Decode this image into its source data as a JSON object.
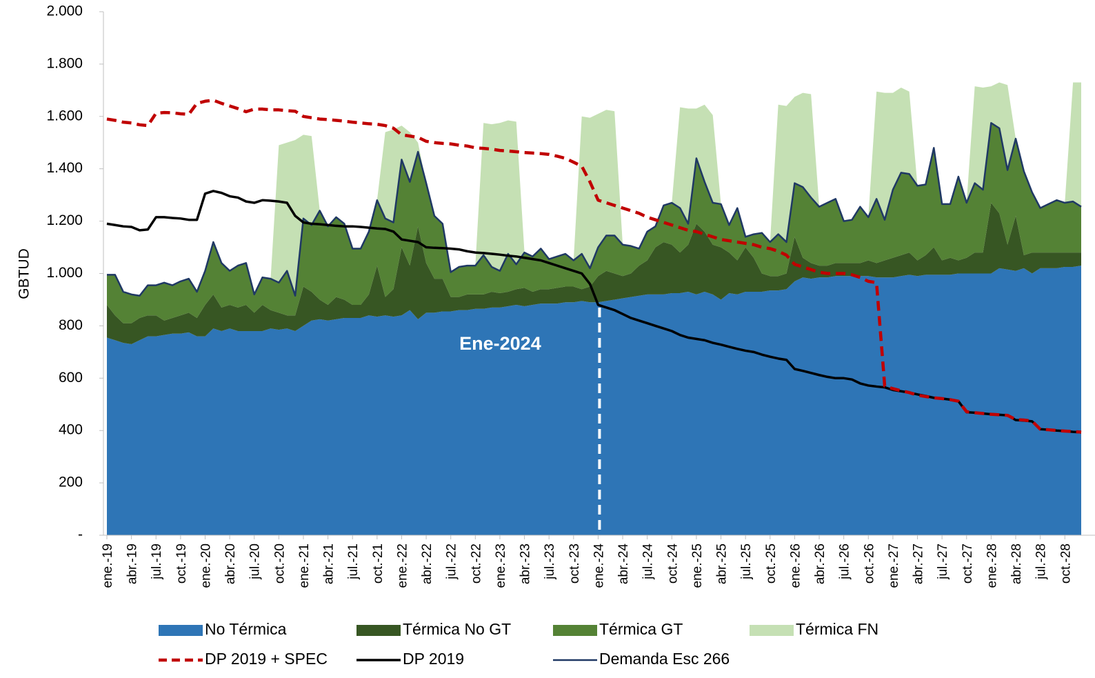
{
  "chart_data": {
    "type": "area",
    "y_label": "GBTUD",
    "legend": "bottom",
    "grid": false,
    "ylim": [
      0,
      2000
    ],
    "yticks": [
      {
        "value": 0,
        "label": "-"
      },
      200,
      400,
      600,
      800,
      {
        "value": 1000,
        "label": "1.000"
      },
      {
        "value": 1200,
        "label": "1.200"
      },
      {
        "value": 1400,
        "label": "1.400"
      },
      {
        "value": 1600,
        "label": "1.600"
      },
      {
        "value": 1800,
        "label": "1.800"
      },
      {
        "value": 2000,
        "label": "2.000"
      }
    ],
    "categories": [
      "ene.-19",
      null,
      null,
      "abr.-19",
      null,
      null,
      "jul.-19",
      null,
      null,
      "oct.-19",
      null,
      null,
      "ene.-20",
      null,
      null,
      "abr.-20",
      null,
      null,
      "jul.-20",
      null,
      null,
      "oct.-20",
      null,
      null,
      "ene.-21",
      null,
      null,
      "abr.-21",
      null,
      null,
      "jul.-21",
      null,
      null,
      "oct.-21",
      null,
      null,
      "ene.-22",
      null,
      null,
      "abr.-22",
      null,
      null,
      "jul.-22",
      null,
      null,
      "oct.-22",
      null,
      null,
      "ene.-23",
      null,
      null,
      "abr.-23",
      null,
      null,
      "jul.-23",
      null,
      null,
      "oct.-23",
      null,
      null,
      "ene.-24",
      null,
      null,
      "abr.-24",
      null,
      null,
      "jul.-24",
      null,
      null,
      "oct.-24",
      null,
      null,
      "ene.-25",
      null,
      null,
      "abr.-25",
      null,
      null,
      "jul.-25",
      null,
      null,
      "oct.-25",
      null,
      null,
      "ene.-26",
      null,
      null,
      "abr.-26",
      null,
      null,
      "jul.-26",
      null,
      null,
      "oct.-26",
      null,
      null,
      "ene.-27",
      null,
      null,
      "abr.-27",
      null,
      null,
      "jul.-27",
      null,
      null,
      "oct.-27",
      null,
      null,
      "ene.-28",
      null,
      null,
      "abr.-28",
      null,
      null,
      "jul.-28",
      null,
      null,
      "oct.-28",
      null,
      null
    ],
    "series": [
      {
        "name": "No Térmica",
        "type": "area",
        "color": "#2e75b6",
        "values": [
          755,
          745,
          735,
          730,
          745,
          760,
          760,
          765,
          770,
          770,
          775,
          760,
          760,
          790,
          780,
          790,
          780,
          780,
          780,
          780,
          790,
          785,
          790,
          780,
          800,
          820,
          825,
          820,
          825,
          830,
          830,
          830,
          840,
          835,
          840,
          835,
          840,
          860,
          825,
          850,
          850,
          855,
          855,
          860,
          860,
          865,
          865,
          870,
          870,
          875,
          880,
          875,
          880,
          885,
          885,
          885,
          890,
          890,
          895,
          890,
          890,
          895,
          900,
          905,
          910,
          915,
          920,
          920,
          920,
          925,
          925,
          930,
          920,
          930,
          920,
          900,
          925,
          920,
          930,
          930,
          930,
          935,
          935,
          940,
          970,
          985,
          980,
          985,
          985,
          990,
          990,
          990,
          990,
          990,
          985,
          985,
          985,
          990,
          995,
          990,
          995,
          995,
          995,
          995,
          1000,
          1000,
          1000,
          1000,
          1000,
          1020,
          1015,
          1010,
          1020,
          1000,
          1020,
          1020,
          1020,
          1025,
          1025,
          1030
        ]
      },
      {
        "name": "Térmica No GT",
        "type": "area",
        "color": "#375623",
        "values": [
          125,
          95,
          75,
          80,
          85,
          80,
          80,
          55,
          60,
          70,
          75,
          70,
          120,
          130,
          90,
          90,
          90,
          100,
          70,
          100,
          70,
          65,
          50,
          60,
          150,
          110,
          75,
          60,
          85,
          70,
          50,
          50,
          80,
          195,
          70,
          105,
          260,
          170,
          355,
          190,
          130,
          125,
          55,
          50,
          60,
          55,
          55,
          60,
          55,
          55,
          60,
          70,
          50,
          55,
          55,
          60,
          60,
          60,
          45,
          60,
          100,
          115,
          100,
          85,
          90,
          115,
          130,
          180,
          200,
          185,
          155,
          180,
          270,
          230,
          190,
          200,
          155,
          130,
          170,
          130,
          70,
          55,
          55,
          60,
          170,
          75,
          60,
          45,
          45,
          50,
          50,
          50,
          50,
          60,
          55,
          65,
          75,
          80,
          85,
          60,
          75,
          105,
          55,
          65,
          50,
          60,
          80,
          80,
          270,
          210,
          95,
          210,
          50,
          80,
          60,
          60,
          60,
          55,
          55,
          50
        ]
      },
      {
        "name": "Térmica GT",
        "type": "area",
        "color": "#548235",
        "values": [
          115,
          155,
          120,
          110,
          85,
          115,
          115,
          145,
          125,
          130,
          130,
          100,
          130,
          200,
          170,
          130,
          160,
          160,
          70,
          105,
          120,
          115,
          170,
          75,
          260,
          255,
          340,
          300,
          305,
          290,
          215,
          215,
          240,
          250,
          300,
          255,
          335,
          320,
          285,
          305,
          240,
          210,
          95,
          115,
          110,
          110,
          150,
          95,
          85,
          145,
          95,
          135,
          135,
          155,
          115,
          120,
          125,
          100,
          135,
          70,
          110,
          135,
          145,
          120,
          105,
          65,
          110,
          80,
          140,
          160,
          170,
          80,
          250,
          190,
          160,
          165,
          105,
          200,
          40,
          90,
          155,
          130,
          160,
          120,
          205,
          270,
          250,
          225,
          240,
          245,
          160,
          165,
          215,
          165,
          245,
          155,
          260,
          315,
          300,
          285,
          270,
          380,
          215,
          205,
          320,
          210,
          265,
          240,
          305,
          325,
          285,
          295,
          320,
          230,
          170,
          185,
          200,
          190,
          195,
          175
        ]
      },
      {
        "name": "Térmica FN",
        "type": "area",
        "color": "#c5e0b4",
        "values": [
          0,
          0,
          0,
          0,
          0,
          0,
          0,
          0,
          0,
          0,
          0,
          0,
          0,
          0,
          0,
          0,
          0,
          0,
          0,
          0,
          0,
          525,
          490,
          595,
          320,
          340,
          0,
          0,
          0,
          0,
          0,
          0,
          0,
          0,
          330,
          355,
          130,
          190,
          35,
          0,
          0,
          0,
          0,
          0,
          0,
          0,
          505,
          545,
          565,
          510,
          545,
          0,
          0,
          0,
          0,
          0,
          0,
          0,
          525,
          575,
          510,
          480,
          475,
          0,
          0,
          0,
          0,
          0,
          0,
          0,
          385,
          440,
          190,
          295,
          335,
          0,
          0,
          0,
          0,
          0,
          0,
          0,
          495,
          520,
          330,
          360,
          395,
          0,
          0,
          0,
          0,
          0,
          0,
          0,
          410,
          485,
          370,
          325,
          315,
          0,
          0,
          0,
          0,
          0,
          0,
          0,
          370,
          390,
          140,
          175,
          325,
          0,
          0,
          0,
          0,
          0,
          0,
          0,
          455,
          475
        ]
      },
      {
        "name": "DP 2019 + SPEC",
        "type": "line",
        "line_style": "dashed",
        "color": "#c00000",
        "values": [
          1590,
          1585,
          1578,
          1575,
          1568,
          1565,
          1612,
          1615,
          1614,
          1610,
          1608,
          1650,
          1658,
          1662,
          1650,
          1640,
          1630,
          1618,
          1628,
          1628,
          1625,
          1625,
          1622,
          1620,
          1600,
          1595,
          1590,
          1588,
          1585,
          1582,
          1578,
          1575,
          1572,
          1570,
          1565,
          1555,
          1530,
          1525,
          1520,
          1505,
          1500,
          1497,
          1495,
          1490,
          1487,
          1480,
          1478,
          1475,
          1470,
          1468,
          1465,
          1462,
          1460,
          1458,
          1455,
          1448,
          1440,
          1425,
          1410,
          1350,
          1280,
          1270,
          1260,
          1250,
          1240,
          1230,
          1215,
          1205,
          1195,
          1185,
          1175,
          1165,
          1160,
          1150,
          1140,
          1130,
          1125,
          1120,
          1115,
          1110,
          1100,
          1095,
          1085,
          1070,
          1035,
          1025,
          1015,
          1005,
          1000,
          1000,
          1000,
          995,
          985,
          970,
          965,
          570,
          560,
          552,
          545,
          535,
          530,
          525,
          522,
          518,
          512,
          472,
          468,
          465,
          462,
          460,
          458,
          442,
          440,
          436,
          405,
          403,
          400,
          398,
          396,
          394
        ]
      },
      {
        "name": "DP 2019",
        "type": "line",
        "line_style": "solid",
        "color": "#000000",
        "values": [
          1190,
          1185,
          1180,
          1178,
          1165,
          1168,
          1215,
          1215,
          1212,
          1210,
          1205,
          1205,
          1305,
          1315,
          1308,
          1295,
          1290,
          1275,
          1270,
          1280,
          1278,
          1275,
          1270,
          1220,
          1195,
          1190,
          1188,
          1185,
          1182,
          1180,
          1180,
          1178,
          1175,
          1172,
          1170,
          1160,
          1130,
          1125,
          1120,
          1100,
          1098,
          1097,
          1095,
          1092,
          1085,
          1080,
          1078,
          1075,
          1072,
          1068,
          1065,
          1060,
          1055,
          1050,
          1040,
          1030,
          1020,
          1010,
          1000,
          960,
          880,
          870,
          860,
          845,
          830,
          820,
          810,
          800,
          790,
          780,
          765,
          755,
          750,
          745,
          735,
          728,
          720,
          712,
          705,
          700,
          690,
          682,
          675,
          670,
          635,
          628,
          620,
          612,
          605,
          600,
          600,
          595,
          580,
          572,
          568,
          565,
          555,
          550,
          545,
          538,
          532,
          525,
          522,
          518,
          512,
          470,
          468,
          465,
          462,
          460,
          458,
          440,
          438,
          435,
          405,
          403,
          400,
          398,
          395,
          393
        ]
      },
      {
        "name": "Demanda Esc 266",
        "type": "line",
        "line_style": "solid",
        "color": "#1f3864",
        "values": [
          995,
          995,
          930,
          920,
          915,
          955,
          955,
          965,
          955,
          970,
          980,
          930,
          1010,
          1120,
          1040,
          1010,
          1030,
          1040,
          920,
          985,
          980,
          965,
          1010,
          915,
          1210,
          1185,
          1240,
          1180,
          1215,
          1190,
          1095,
          1095,
          1160,
          1280,
          1210,
          1195,
          1435,
          1350,
          1465,
          1345,
          1220,
          1190,
          1005,
          1025,
          1030,
          1030,
          1070,
          1025,
          1010,
          1075,
          1035,
          1080,
          1065,
          1095,
          1055,
          1065,
          1075,
          1050,
          1075,
          1020,
          1100,
          1145,
          1145,
          1110,
          1105,
          1095,
          1160,
          1180,
          1260,
          1270,
          1250,
          1190,
          1440,
          1350,
          1270,
          1265,
          1185,
          1250,
          1140,
          1150,
          1155,
          1120,
          1150,
          1120,
          1345,
          1330,
          1290,
          1255,
          1270,
          1285,
          1200,
          1205,
          1255,
          1215,
          1285,
          1205,
          1320,
          1385,
          1380,
          1335,
          1340,
          1480,
          1265,
          1265,
          1370,
          1270,
          1345,
          1320,
          1575,
          1555,
          1395,
          1515,
          1390,
          1310,
          1250,
          1265,
          1280,
          1270,
          1275,
          1255
        ]
      }
    ],
    "annotations": [
      {
        "text": "Ene-2024",
        "x": "ene.-24"
      }
    ]
  }
}
